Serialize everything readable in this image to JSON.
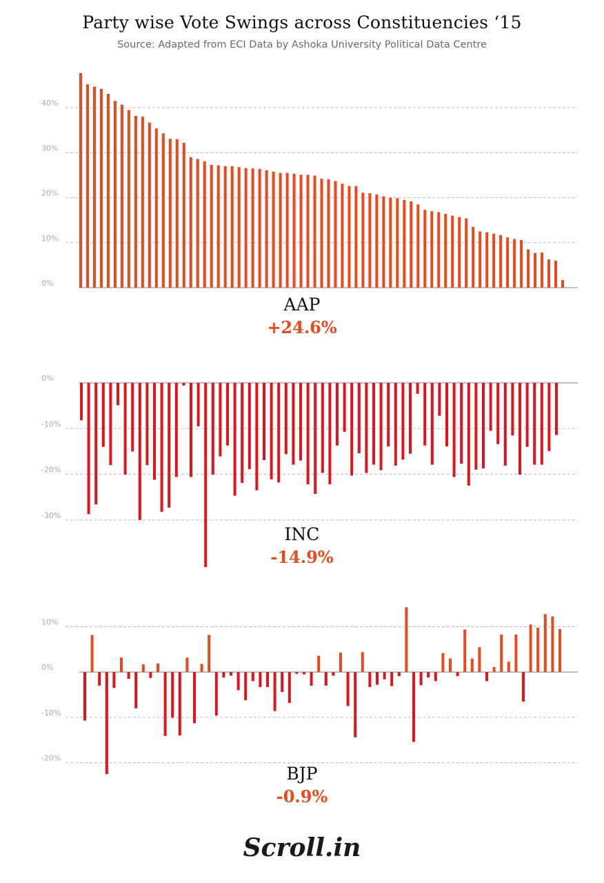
{
  "header": {
    "title": "Party wise Vote Swings across Constituencies ‘15",
    "subtitle": "Source: Adapted from ECI Data by Ashoka University Political Data Centre"
  },
  "logo": {
    "text": "Scroll.in"
  },
  "chart_data": [
    {
      "type": "bar",
      "party": "AAP",
      "overall_swing": "+24.6%",
      "color": "#e8491d",
      "ylim": [
        0,
        48
      ],
      "yticks": [
        0,
        10,
        20,
        30,
        40
      ],
      "ytick_labels": [
        "0%",
        "10%",
        "20%",
        "30%",
        "40%"
      ],
      "grid": true,
      "values": [
        47.7,
        45.2,
        44.7,
        44.2,
        43.1,
        41.5,
        40.7,
        39.5,
        38.2,
        38.0,
        36.7,
        35.4,
        34.3,
        33.1,
        33.0,
        32.2,
        29.0,
        28.6,
        28.1,
        27.3,
        27.2,
        27.0,
        27.0,
        26.8,
        26.6,
        26.5,
        26.4,
        26.1,
        25.8,
        25.5,
        25.5,
        25.3,
        25.1,
        25.1,
        24.9,
        24.2,
        24.1,
        23.7,
        23.1,
        22.6,
        22.6,
        21.1,
        21.0,
        20.7,
        20.3,
        20.0,
        19.9,
        19.5,
        19.2,
        18.5,
        17.3,
        17.0,
        16.8,
        16.4,
        16.0,
        15.7,
        15.4,
        13.5,
        12.5,
        12.3,
        12.0,
        11.7,
        11.2,
        10.8,
        10.6,
        8.5,
        7.7,
        7.8,
        6.3,
        6.0,
        1.7
      ]
    },
    {
      "type": "bar",
      "party": "INC",
      "overall_swing": "-14.9%",
      "color": "#e0141a",
      "ylim": [
        -40,
        0
      ],
      "yticks": [
        0,
        -10,
        -20,
        -30
      ],
      "ytick_labels": [
        "0%",
        "-10%",
        "-20%",
        "-30%"
      ],
      "grid": true,
      "values": [
        -8.2,
        -28.7,
        -26.6,
        -14.0,
        -18.0,
        -4.9,
        -20.1,
        -15.0,
        -30.0,
        -18.0,
        -21.2,
        -28.2,
        -27.3,
        -20.6,
        -0.6,
        -20.6,
        -9.5,
        -40.3,
        -20.1,
        -16.1,
        -13.7,
        -24.7,
        -21.9,
        -18.9,
        -23.5,
        -16.9,
        -21.1,
        -21.8,
        -15.6,
        -17.9,
        -17.0,
        -22.2,
        -24.3,
        -19.7,
        -22.2,
        -13.7,
        -10.7,
        -20.3,
        -15.4,
        -19.7,
        -17.9,
        -19.1,
        -13.9,
        -18.1,
        -16.8,
        -15.5,
        -2.4,
        -13.7,
        -17.9,
        -7.2,
        -13.9,
        -20.6,
        -17.7,
        -22.5,
        -19.0,
        -18.7,
        -10.5,
        -13.4,
        -18.1,
        -11.5,
        -20.1,
        -14.0,
        -17.9,
        -17.9,
        -14.9,
        -11.4
      ]
    },
    {
      "type": "bar",
      "party": "BJP",
      "overall_swing": "-0.9%",
      "color": "#e8491d",
      "negative_color": "#e0141a",
      "ylim": [
        -22.5,
        14.5
      ],
      "yticks": [
        10,
        0,
        -10,
        -20
      ],
      "ytick_labels": [
        "10%",
        "0%",
        "-10%",
        "-20%"
      ],
      "grid": true,
      "values": [
        -10.7,
        8.2,
        -3.0,
        -22.5,
        -3.5,
        3.2,
        -1.5,
        -8.0,
        1.7,
        -1.3,
        1.9,
        -14.1,
        -10.1,
        -14.0,
        3.2,
        -11.3,
        1.8,
        8.2,
        -9.6,
        -1.2,
        -0.8,
        -4.0,
        -6.2,
        -2.0,
        -3.3,
        -3.3,
        -8.6,
        -4.4,
        -6.8,
        -0.4,
        -0.5,
        -3.0,
        3.6,
        -3.0,
        -0.8,
        4.3,
        -7.5,
        -14.4,
        4.4,
        -3.3,
        -2.8,
        -1.6,
        -3.1,
        -0.9,
        14.3,
        -15.4,
        -2.9,
        -1.2,
        -2.0,
        4.2,
        3.0,
        -0.9,
        9.4,
        3.0,
        5.5,
        -2.0,
        1.1,
        8.3,
        2.3,
        8.3,
        -6.5,
        10.5,
        9.8,
        12.8,
        12.3,
        9.5
      ]
    }
  ]
}
